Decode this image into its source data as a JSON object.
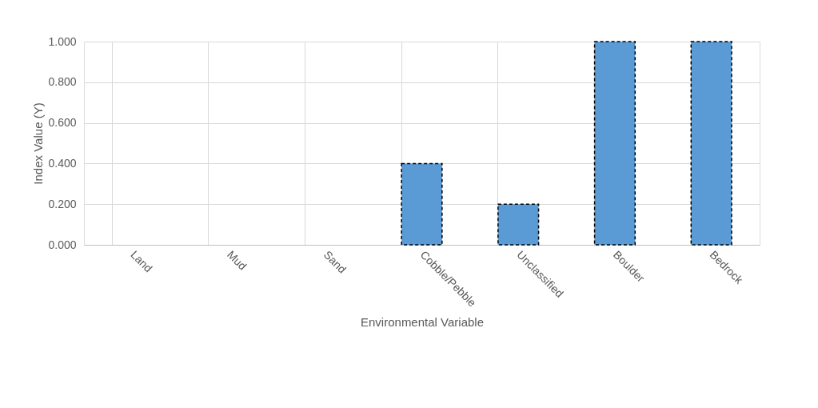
{
  "chart_data": {
    "type": "bar",
    "xlabel": "Environmental Variable",
    "ylabel": "Index Value (Y)",
    "categories": [
      "Land",
      "Mud",
      "Sand",
      "Cobble/Pebble",
      "Unclassified",
      "Boulder",
      "Bedrock"
    ],
    "values": [
      0,
      0,
      0,
      0.4,
      0.2,
      1.0,
      1.0
    ],
    "color": "#5b9bd5",
    "ylim": [
      0,
      1.0
    ],
    "yticks": [
      {
        "value": 0,
        "label": "0.000"
      },
      {
        "value": 0.2,
        "label": "0.200"
      },
      {
        "value": 0.4,
        "label": "0.400"
      },
      {
        "value": 0.6,
        "label": "0.600"
      },
      {
        "value": 0.8,
        "label": "0.800"
      },
      {
        "value": 1.0,
        "label": "1.000"
      }
    ],
    "grid": true
  }
}
